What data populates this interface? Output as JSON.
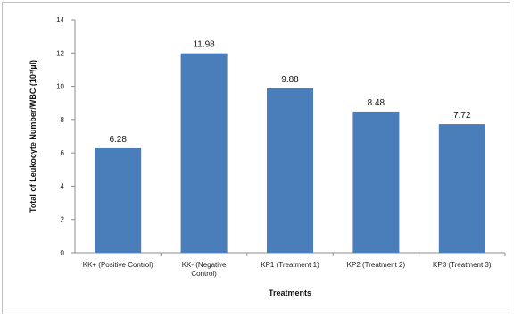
{
  "chart_data": {
    "type": "bar",
    "categories": [
      "KK+ (Positive Control)",
      "KK- (Negative Control)",
      "KP1 (Treatment 1)",
      "KP2 (Treatment 2)",
      "KP3 (Treatment 3)"
    ],
    "category_lines": [
      [
        "KK+ (Positive Control)"
      ],
      [
        "KK- (Negative",
        "Control)"
      ],
      [
        "KP1 (Treatment 1)"
      ],
      [
        "KP2 (Treatment 2)"
      ],
      [
        "KP3 (Treatment 3)"
      ]
    ],
    "values": [
      6.28,
      11.98,
      9.88,
      8.48,
      7.72
    ],
    "data_labels": [
      "6.28",
      "11.98",
      "9.88",
      "8.48",
      "7.72"
    ],
    "xlabel": "Treatments",
    "ylabel": "Total of Leukocyte Number/WBC (10³/µl)",
    "ylim": [
      0,
      14
    ],
    "yticks": [
      0,
      2,
      4,
      6,
      8,
      10,
      12,
      14
    ],
    "bar_color": "#4a7ebb",
    "grid": false,
    "legend": "none"
  }
}
